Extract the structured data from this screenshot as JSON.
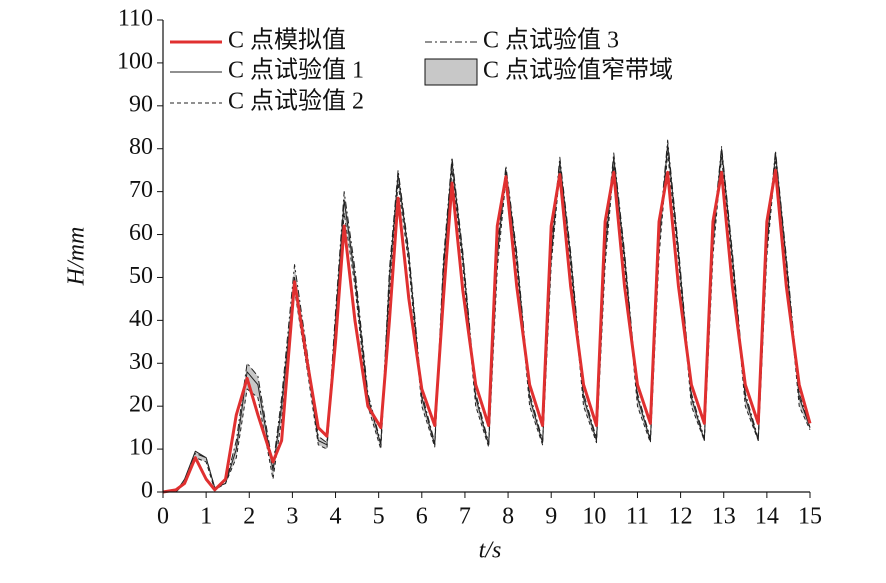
{
  "chart_data": {
    "type": "line",
    "xlabel": "t/s",
    "ylabel": "H/mm",
    "x": [
      0,
      0.3,
      0.5,
      0.75,
      1.0,
      1.2,
      1.45,
      1.7,
      1.95,
      2.2,
      2.55,
      2.75,
      3.05,
      3.35,
      3.6,
      3.8,
      4.0,
      4.2,
      4.45,
      4.75,
      5.05,
      5.25,
      5.45,
      5.7,
      6.0,
      6.3,
      6.5,
      6.7,
      6.95,
      7.25,
      7.55,
      7.75,
      7.95,
      8.2,
      8.5,
      8.8,
      9.0,
      9.2,
      9.45,
      9.75,
      10.05,
      10.25,
      10.45,
      10.7,
      11.0,
      11.3,
      11.5,
      11.7,
      11.95,
      12.25,
      12.55,
      12.75,
      12.95,
      13.2,
      13.5,
      13.8,
      14.0,
      14.2,
      14.45,
      14.75,
      15.0
    ],
    "series": [
      {
        "name": "C 点模拟值",
        "color": "#e03030",
        "style": "solid",
        "width": 3,
        "values": [
          0,
          0.5,
          2,
          8,
          3,
          0.5,
          3,
          18,
          26.5,
          18,
          7,
          12,
          49,
          30,
          15,
          13,
          35,
          62,
          40,
          20,
          15,
          40,
          68.5,
          45,
          24,
          15.5,
          45,
          72,
          47,
          25,
          15.5,
          62,
          73.5,
          48,
          25,
          15.5,
          62,
          74,
          48,
          25,
          15.5,
          63,
          74.5,
          48,
          25,
          16,
          63,
          74.5,
          48,
          25,
          16,
          63,
          74.5,
          48,
          25,
          16,
          63,
          75,
          48,
          25,
          16
        ]
      },
      {
        "name": "C 点试验值 1",
        "color": "#222222",
        "style": "solid",
        "width": 1,
        "values": [
          0,
          0,
          3,
          9.5,
          8,
          1,
          2,
          10,
          28,
          25,
          5,
          20,
          50,
          30,
          12,
          11,
          40,
          68,
          50,
          22,
          11,
          50,
          74,
          55,
          22,
          11,
          52,
          77,
          55,
          22,
          11,
          55,
          75,
          55,
          22,
          11.5,
          55,
          77,
          55,
          22,
          12,
          56,
          78,
          55,
          22,
          12,
          58,
          81,
          56,
          22,
          12,
          58,
          80,
          55,
          22,
          12,
          57,
          79,
          54,
          22,
          15
        ]
      },
      {
        "name": "C 点试验值 2",
        "color": "#222222",
        "style": "dashed",
        "width": 1,
        "values": [
          0,
          0,
          2,
          8,
          7,
          0.5,
          2,
          8,
          24,
          22,
          3,
          17,
          47,
          28,
          11,
          10,
          36,
          65,
          48,
          20,
          10,
          46,
          72,
          53,
          20,
          10.5,
          50,
          75,
          53,
          20,
          10.5,
          52,
          73,
          53,
          20,
          11,
          53,
          75,
          53,
          20,
          11.5,
          53,
          76,
          53,
          20,
          11.5,
          55,
          79,
          54,
          20,
          12,
          55,
          78,
          53,
          20,
          12,
          55,
          77,
          52,
          20,
          14.5
        ]
      },
      {
        "name": "C 点试验值 3",
        "color": "#222222",
        "style": "dashdot",
        "width": 1,
        "values": [
          0,
          0,
          2.5,
          9,
          8,
          1,
          2,
          12,
          30,
          27,
          6,
          22,
          53,
          32,
          13,
          11.5,
          42,
          70,
          52,
          23,
          11.5,
          52,
          75,
          56,
          23,
          11.5,
          54,
          78,
          56,
          23,
          11.5,
          57,
          76,
          56,
          23,
          12,
          57,
          78,
          56,
          23,
          12.5,
          58,
          79,
          56,
          23,
          12.5,
          60,
          82,
          57,
          23,
          12.5,
          60,
          80.5,
          56,
          23,
          12.5,
          59,
          79.5,
          55,
          23,
          15
        ]
      }
    ],
    "band": {
      "name": "C 点试验值窄带域",
      "color": "#c8c8c8"
    },
    "xlim": [
      0,
      15
    ],
    "xticks": [
      0,
      1,
      2,
      3,
      4,
      5,
      6,
      7,
      8,
      9,
      10,
      11,
      12,
      13,
      14,
      15
    ],
    "ylim": [
      0,
      110
    ],
    "yticks": [
      0,
      10,
      20,
      30,
      40,
      50,
      60,
      70,
      80,
      90,
      100,
      110
    ]
  }
}
